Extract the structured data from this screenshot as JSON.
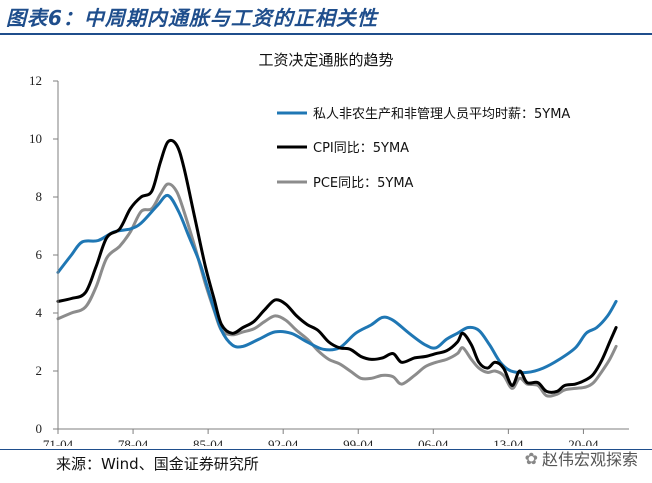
{
  "header": {
    "figure_title": "图表6：中周期内通胀与工资的正相关性"
  },
  "footer": {
    "source": "来源：Wind、国金证券研究所",
    "watermark": "赵伟宏观探索"
  },
  "colors": {
    "wages": "#1f77b4",
    "cpi": "#000000",
    "pce": "#8c8c8c",
    "axis": "#7f7f7f"
  },
  "chart_data": {
    "type": "line",
    "title": "工资决定通胀的趋势",
    "xlabel": "",
    "ylabel": "",
    "ylim": [
      0,
      12
    ],
    "yticks": [
      0,
      2,
      4,
      6,
      8,
      10,
      12
    ],
    "xlim": [
      1971.25,
      2024.5
    ],
    "xticks": [
      {
        "label": "71-04",
        "value": 1971.25
      },
      {
        "label": "78-04",
        "value": 1978.25
      },
      {
        "label": "85-04",
        "value": 1985.25
      },
      {
        "label": "92-04",
        "value": 1992.25
      },
      {
        "label": "99-04",
        "value": 1999.25
      },
      {
        "label": "06-04",
        "value": 2006.25
      },
      {
        "label": "13-04",
        "value": 2013.25
      },
      {
        "label": "20-04",
        "value": 2020.25
      }
    ],
    "legend_position": "top-right",
    "series": [
      {
        "name": "私人非农生产和非管理人员平均时薪：5YMA",
        "key": "wages",
        "width": 3,
        "points": [
          [
            1971.25,
            5.4
          ],
          [
            1972.5,
            6.0
          ],
          [
            1973.5,
            6.45
          ],
          [
            1975,
            6.5
          ],
          [
            1976.5,
            6.8
          ],
          [
            1978,
            6.9
          ],
          [
            1979,
            7.1
          ],
          [
            1980.5,
            7.7
          ],
          [
            1981.5,
            8.05
          ],
          [
            1982.5,
            7.5
          ],
          [
            1983.5,
            6.6
          ],
          [
            1984.5,
            5.7
          ],
          [
            1985.5,
            4.5
          ],
          [
            1986.5,
            3.4
          ],
          [
            1987.5,
            2.9
          ],
          [
            1988.5,
            2.85
          ],
          [
            1990,
            3.1
          ],
          [
            1991.5,
            3.35
          ],
          [
            1993,
            3.3
          ],
          [
            1994.5,
            3.0
          ],
          [
            1996,
            2.75
          ],
          [
            1997.5,
            2.8
          ],
          [
            1999,
            3.3
          ],
          [
            2000.5,
            3.6
          ],
          [
            2001.5,
            3.85
          ],
          [
            2002.5,
            3.75
          ],
          [
            2004,
            3.3
          ],
          [
            2005.5,
            2.9
          ],
          [
            2006.5,
            2.8
          ],
          [
            2007.5,
            3.1
          ],
          [
            2008.5,
            3.3
          ],
          [
            2009.5,
            3.5
          ],
          [
            2010.5,
            3.4
          ],
          [
            2011.5,
            2.9
          ],
          [
            2012.5,
            2.3
          ],
          [
            2013.5,
            2.0
          ],
          [
            2015,
            1.95
          ],
          [
            2016.5,
            2.1
          ],
          [
            2018,
            2.4
          ],
          [
            2019.5,
            2.8
          ],
          [
            2020.5,
            3.3
          ],
          [
            2021.5,
            3.5
          ],
          [
            2022.5,
            3.9
          ],
          [
            2023.3,
            4.4
          ]
        ]
      },
      {
        "name": "CPI同比：5YMA",
        "key": "cpi",
        "width": 3,
        "points": [
          [
            1971.25,
            4.4
          ],
          [
            1972.5,
            4.5
          ],
          [
            1973.8,
            4.7
          ],
          [
            1974.8,
            5.6
          ],
          [
            1975.8,
            6.6
          ],
          [
            1977,
            6.9
          ],
          [
            1978,
            7.6
          ],
          [
            1979,
            8.0
          ],
          [
            1980,
            8.2
          ],
          [
            1980.8,
            9.2
          ],
          [
            1981.5,
            9.9
          ],
          [
            1982.3,
            9.8
          ],
          [
            1983,
            9.0
          ],
          [
            1984,
            7.3
          ],
          [
            1985,
            5.6
          ],
          [
            1985.8,
            4.5
          ],
          [
            1986.5,
            3.6
          ],
          [
            1987.5,
            3.3
          ],
          [
            1988.5,
            3.5
          ],
          [
            1989.5,
            3.7
          ],
          [
            1990.5,
            4.1
          ],
          [
            1991.5,
            4.45
          ],
          [
            1992.5,
            4.3
          ],
          [
            1993.5,
            3.9
          ],
          [
            1994.5,
            3.6
          ],
          [
            1995.5,
            3.4
          ],
          [
            1996.5,
            3.0
          ],
          [
            1997.5,
            2.8
          ],
          [
            1998.5,
            2.75
          ],
          [
            1999.5,
            2.5
          ],
          [
            2000.5,
            2.4
          ],
          [
            2001.5,
            2.45
          ],
          [
            2002.5,
            2.6
          ],
          [
            2003.3,
            2.3
          ],
          [
            2004.5,
            2.45
          ],
          [
            2005.5,
            2.5
          ],
          [
            2006.5,
            2.6
          ],
          [
            2007.5,
            2.7
          ],
          [
            2008.5,
            3.0
          ],
          [
            2009,
            3.3
          ],
          [
            2009.8,
            2.9
          ],
          [
            2010.5,
            2.3
          ],
          [
            2011.3,
            2.1
          ],
          [
            2012,
            2.3
          ],
          [
            2012.8,
            2.1
          ],
          [
            2013.6,
            1.5
          ],
          [
            2014.3,
            2.0
          ],
          [
            2015,
            1.6
          ],
          [
            2016,
            1.6
          ],
          [
            2016.8,
            1.3
          ],
          [
            2017.8,
            1.3
          ],
          [
            2018.5,
            1.5
          ],
          [
            2019.5,
            1.55
          ],
          [
            2020.5,
            1.7
          ],
          [
            2021.2,
            1.9
          ],
          [
            2022,
            2.4
          ],
          [
            2022.7,
            3.0
          ],
          [
            2023.3,
            3.5
          ]
        ]
      },
      {
        "name": "PCE同比：5YMA",
        "key": "pce",
        "width": 3,
        "points": [
          [
            1971.25,
            3.8
          ],
          [
            1972.5,
            4.0
          ],
          [
            1973.8,
            4.2
          ],
          [
            1974.8,
            4.9
          ],
          [
            1975.8,
            5.9
          ],
          [
            1977,
            6.3
          ],
          [
            1978,
            6.8
          ],
          [
            1979,
            7.5
          ],
          [
            1980,
            7.6
          ],
          [
            1980.8,
            8.1
          ],
          [
            1981.5,
            8.45
          ],
          [
            1982.3,
            8.2
          ],
          [
            1983,
            7.5
          ],
          [
            1984,
            6.3
          ],
          [
            1985,
            5.0
          ],
          [
            1985.8,
            4.1
          ],
          [
            1986.5,
            3.4
          ],
          [
            1987.5,
            3.25
          ],
          [
            1988.5,
            3.35
          ],
          [
            1989.5,
            3.45
          ],
          [
            1990.5,
            3.7
          ],
          [
            1991.5,
            3.9
          ],
          [
            1992.5,
            3.75
          ],
          [
            1993.5,
            3.4
          ],
          [
            1994.5,
            3.1
          ],
          [
            1995.5,
            2.7
          ],
          [
            1996.5,
            2.4
          ],
          [
            1997.5,
            2.25
          ],
          [
            1998.5,
            2.0
          ],
          [
            1999.5,
            1.75
          ],
          [
            2000.5,
            1.75
          ],
          [
            2001.5,
            1.85
          ],
          [
            2002.5,
            1.8
          ],
          [
            2003.3,
            1.55
          ],
          [
            2004.5,
            1.85
          ],
          [
            2005.5,
            2.15
          ],
          [
            2006.5,
            2.3
          ],
          [
            2007.5,
            2.4
          ],
          [
            2008.5,
            2.6
          ],
          [
            2009,
            2.8
          ],
          [
            2009.8,
            2.4
          ],
          [
            2010.5,
            2.1
          ],
          [
            2011.3,
            1.95
          ],
          [
            2012,
            2.0
          ],
          [
            2012.8,
            1.85
          ],
          [
            2013.6,
            1.4
          ],
          [
            2014.3,
            1.75
          ],
          [
            2015,
            1.55
          ],
          [
            2016,
            1.5
          ],
          [
            2016.8,
            1.15
          ],
          [
            2017.8,
            1.2
          ],
          [
            2018.5,
            1.35
          ],
          [
            2019.5,
            1.4
          ],
          [
            2020.5,
            1.45
          ],
          [
            2021.2,
            1.6
          ],
          [
            2022,
            2.0
          ],
          [
            2022.7,
            2.4
          ],
          [
            2023.3,
            2.85
          ]
        ]
      }
    ]
  }
}
